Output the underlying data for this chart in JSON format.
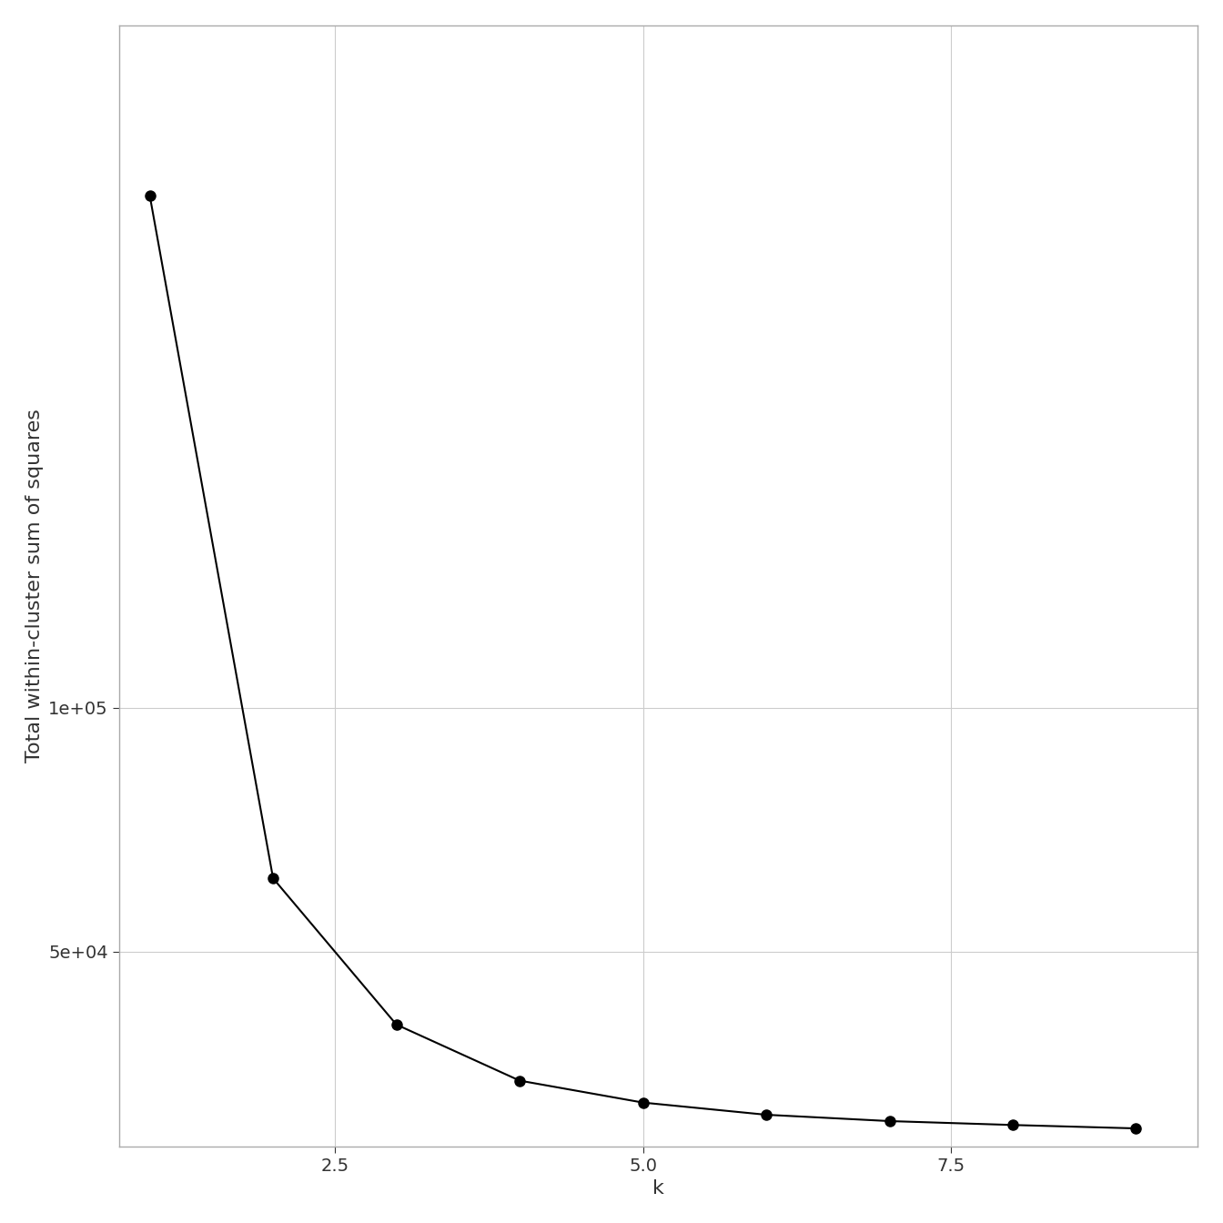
{
  "k": [
    1,
    2,
    3,
    4,
    5,
    6,
    7,
    8,
    9
  ],
  "wss": [
    205000,
    65000,
    35000,
    23500,
    19000,
    16500,
    15200,
    14400,
    13700
  ],
  "xlabel": "k",
  "ylabel": "Total within-cluster sum of squares",
  "line_color": "#000000",
  "point_color": "#000000",
  "background_color": "#ffffff",
  "grid_color": "#cccccc",
  "panel_background": "#ffffff",
  "axis_color": "#333333",
  "point_size": 8,
  "line_width": 1.5,
  "label_fontsize": 16,
  "tick_fontsize": 14,
  "xlim": [
    0.75,
    9.5
  ],
  "ylim": [
    10000,
    240000
  ],
  "xticks": [
    2.5,
    5.0,
    7.5
  ],
  "xtick_labels": [
    "2.5",
    "5.0",
    "7.5"
  ],
  "yticks": [
    50000,
    100000
  ],
  "ytick_labels": [
    "5e+04",
    "1e+05"
  ]
}
